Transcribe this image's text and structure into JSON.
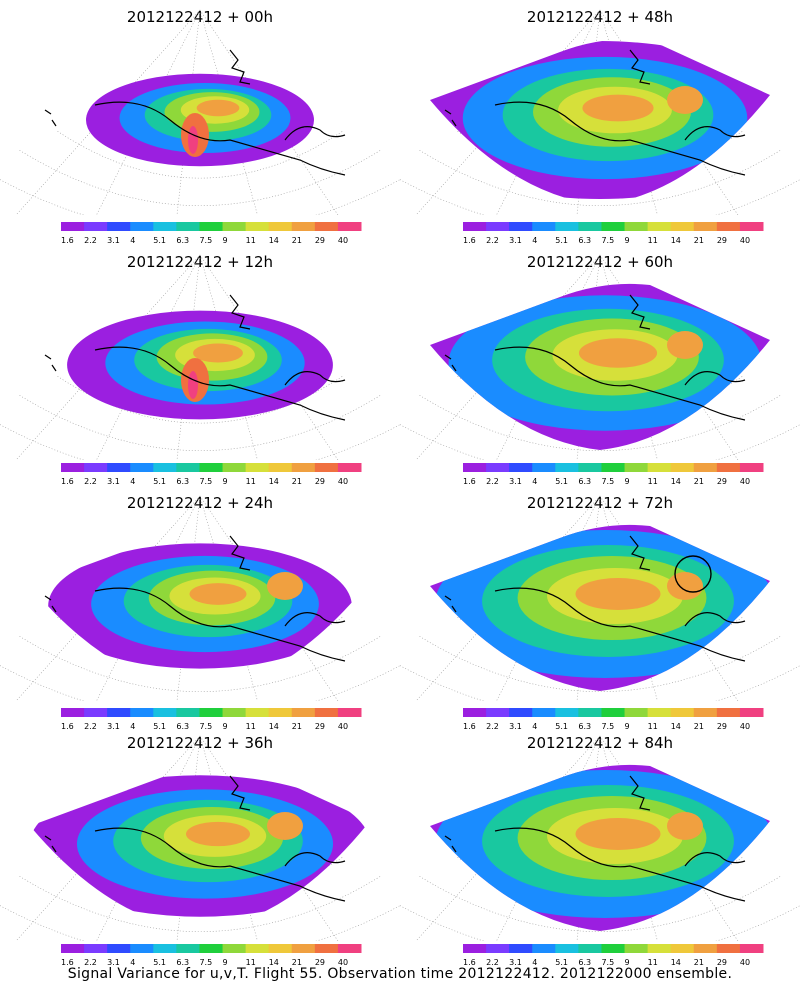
{
  "panels": [
    {
      "title": "2012122412  + 00h",
      "forecast_hour": 0,
      "circle_marker": false
    },
    {
      "title": "2012122412  + 48h",
      "forecast_hour": 48,
      "circle_marker": false
    },
    {
      "title": "2012122412  + 12h",
      "forecast_hour": 12,
      "circle_marker": false
    },
    {
      "title": "2012122412  + 60h",
      "forecast_hour": 60,
      "circle_marker": false
    },
    {
      "title": "2012122412  + 24h",
      "forecast_hour": 24,
      "circle_marker": false
    },
    {
      "title": "2012122412  + 72h",
      "forecast_hour": 72,
      "circle_marker": true
    },
    {
      "title": "2012122412  + 36h",
      "forecast_hour": 36,
      "circle_marker": false
    },
    {
      "title": "2012122412  + 84h",
      "forecast_hour": 84,
      "circle_marker": false
    }
  ],
  "colorbar": {
    "colors": [
      "#9b1fe0",
      "#7a3bff",
      "#2f4bff",
      "#1a8cff",
      "#19c0e0",
      "#19c8a0",
      "#1fcf3c",
      "#8fd83a",
      "#d6e03a",
      "#efc83a",
      "#f0a040",
      "#f07040",
      "#f04080"
    ],
    "tick_labels": [
      "1.6",
      "2.2",
      "3.1",
      "4",
      "5.1",
      "6.3",
      "7.5",
      "9",
      "11",
      "14",
      "21",
      "29",
      "40"
    ]
  },
  "footer": "Signal Variance for u,v,T. Flight 55. Observation time 2012122412. 2012122000 ensemble."
}
